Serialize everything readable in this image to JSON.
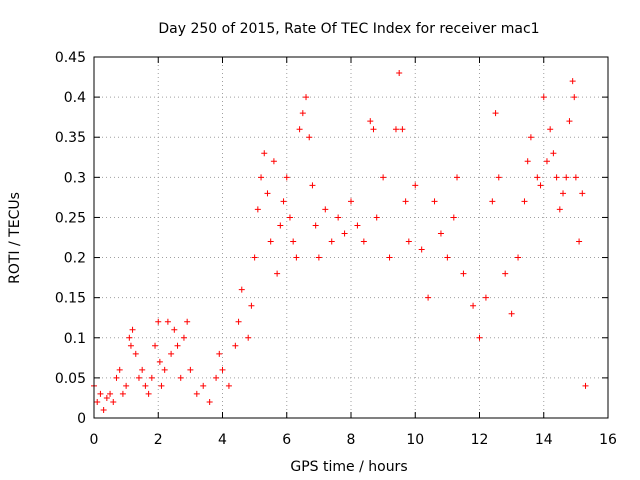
{
  "chart_data": {
    "type": "scatter",
    "title": "Day 250 of 2015, Rate Of TEC Index for receiver mac1",
    "xlabel": "GPS time / hours",
    "ylabel": "ROTI / TECUs",
    "xlim": [
      0,
      16
    ],
    "ylim": [
      0,
      0.45
    ],
    "x_ticks": [
      "0",
      "2",
      "4",
      "6",
      "8",
      "10",
      "12",
      "14",
      "16"
    ],
    "y_ticks": [
      "0",
      "0.05",
      "0.1",
      "0.15",
      "0.2",
      "0.25",
      "0.3",
      "0.35",
      "0.4",
      "0.45"
    ],
    "grid": true,
    "marker": "+",
    "color": "#ff0000",
    "series": [
      {
        "name": "ROTI",
        "points": [
          [
            0.0,
            0.04
          ],
          [
            0.1,
            0.02
          ],
          [
            0.2,
            0.03
          ],
          [
            0.3,
            0.01
          ],
          [
            0.4,
            0.025
          ],
          [
            0.5,
            0.03
          ],
          [
            0.6,
            0.02
          ],
          [
            0.7,
            0.05
          ],
          [
            0.8,
            0.06
          ],
          [
            0.9,
            0.03
          ],
          [
            1.0,
            0.04
          ],
          [
            1.1,
            0.1
          ],
          [
            1.15,
            0.09
          ],
          [
            1.2,
            0.11
          ],
          [
            1.3,
            0.08
          ],
          [
            1.4,
            0.05
          ],
          [
            1.5,
            0.06
          ],
          [
            1.6,
            0.04
          ],
          [
            1.7,
            0.03
          ],
          [
            1.8,
            0.05
          ],
          [
            1.9,
            0.09
          ],
          [
            2.0,
            0.12
          ],
          [
            2.05,
            0.07
          ],
          [
            2.1,
            0.04
          ],
          [
            2.2,
            0.06
          ],
          [
            2.3,
            0.12
          ],
          [
            2.4,
            0.08
          ],
          [
            2.5,
            0.11
          ],
          [
            2.6,
            0.09
          ],
          [
            2.7,
            0.05
          ],
          [
            2.8,
            0.1
          ],
          [
            2.9,
            0.12
          ],
          [
            3.0,
            0.06
          ],
          [
            3.2,
            0.03
          ],
          [
            3.4,
            0.04
          ],
          [
            3.6,
            0.02
          ],
          [
            3.8,
            0.05
          ],
          [
            3.9,
            0.08
          ],
          [
            4.0,
            0.06
          ],
          [
            4.2,
            0.04
          ],
          [
            4.4,
            0.09
          ],
          [
            4.5,
            0.12
          ],
          [
            4.6,
            0.16
          ],
          [
            4.8,
            0.1
          ],
          [
            4.9,
            0.14
          ],
          [
            5.0,
            0.2
          ],
          [
            5.1,
            0.26
          ],
          [
            5.2,
            0.3
          ],
          [
            5.3,
            0.33
          ],
          [
            5.4,
            0.28
          ],
          [
            5.5,
            0.22
          ],
          [
            5.6,
            0.32
          ],
          [
            5.7,
            0.18
          ],
          [
            5.8,
            0.24
          ],
          [
            5.9,
            0.27
          ],
          [
            6.0,
            0.3
          ],
          [
            6.1,
            0.25
          ],
          [
            6.2,
            0.22
          ],
          [
            6.3,
            0.2
          ],
          [
            6.4,
            0.36
          ],
          [
            6.5,
            0.38
          ],
          [
            6.6,
            0.4
          ],
          [
            6.7,
            0.35
          ],
          [
            6.8,
            0.29
          ],
          [
            6.9,
            0.24
          ],
          [
            7.0,
            0.2
          ],
          [
            7.2,
            0.26
          ],
          [
            7.4,
            0.22
          ],
          [
            7.6,
            0.25
          ],
          [
            7.8,
            0.23
          ],
          [
            8.0,
            0.27
          ],
          [
            8.2,
            0.24
          ],
          [
            8.4,
            0.22
          ],
          [
            8.6,
            0.37
          ],
          [
            8.7,
            0.36
          ],
          [
            8.8,
            0.25
          ],
          [
            9.0,
            0.3
          ],
          [
            9.2,
            0.2
          ],
          [
            9.4,
            0.36
          ],
          [
            9.5,
            0.43
          ],
          [
            9.6,
            0.36
          ],
          [
            9.7,
            0.27
          ],
          [
            9.8,
            0.22
          ],
          [
            10.0,
            0.29
          ],
          [
            10.2,
            0.21
          ],
          [
            10.4,
            0.15
          ],
          [
            10.6,
            0.27
          ],
          [
            10.8,
            0.23
          ],
          [
            11.0,
            0.2
          ],
          [
            11.2,
            0.25
          ],
          [
            11.3,
            0.3
          ],
          [
            11.5,
            0.18
          ],
          [
            11.8,
            0.14
          ],
          [
            12.0,
            0.1
          ],
          [
            12.2,
            0.15
          ],
          [
            12.4,
            0.27
          ],
          [
            12.5,
            0.38
          ],
          [
            12.6,
            0.3
          ],
          [
            12.8,
            0.18
          ],
          [
            13.0,
            0.13
          ],
          [
            13.2,
            0.2
          ],
          [
            13.4,
            0.27
          ],
          [
            13.5,
            0.32
          ],
          [
            13.6,
            0.35
          ],
          [
            13.8,
            0.3
          ],
          [
            13.9,
            0.29
          ],
          [
            14.0,
            0.4
          ],
          [
            14.1,
            0.32
          ],
          [
            14.2,
            0.36
          ],
          [
            14.3,
            0.33
          ],
          [
            14.4,
            0.3
          ],
          [
            14.5,
            0.26
          ],
          [
            14.6,
            0.28
          ],
          [
            14.7,
            0.3
          ],
          [
            14.8,
            0.37
          ],
          [
            14.9,
            0.42
          ],
          [
            14.95,
            0.4
          ],
          [
            15.0,
            0.3
          ],
          [
            15.1,
            0.22
          ],
          [
            15.2,
            0.28
          ],
          [
            15.3,
            0.04
          ]
        ]
      }
    ]
  }
}
